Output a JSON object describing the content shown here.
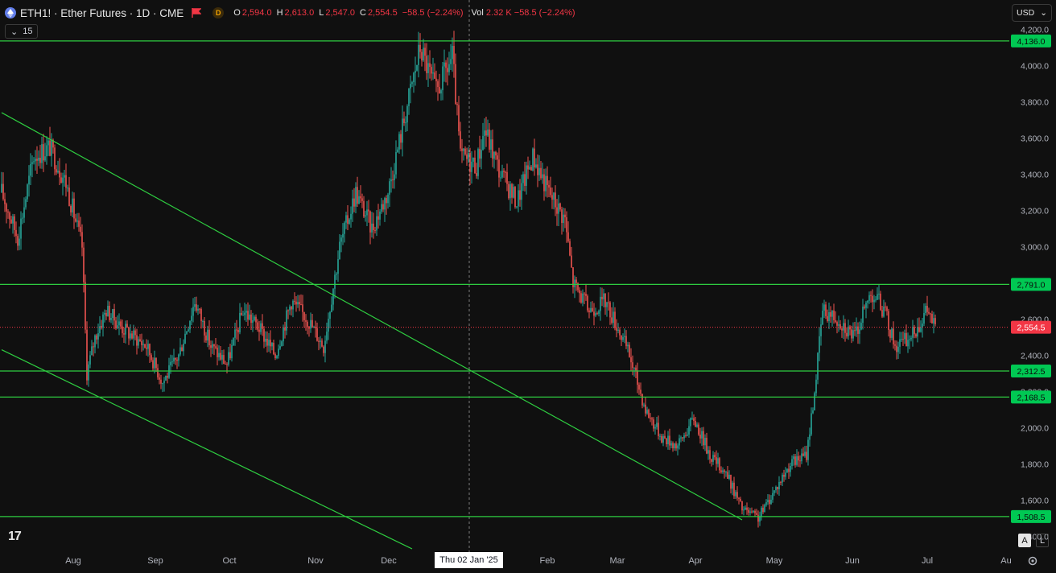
{
  "header": {
    "symbol_text": "ETH1! · Ether Futures · 1D · CME",
    "d_badge": "D",
    "ohlc": [
      {
        "k": "O",
        "v": "2,594.0"
      },
      {
        "k": "H",
        "v": "2,613.0"
      },
      {
        "k": "L",
        "v": "2,547.0"
      },
      {
        "k": "C",
        "v": "2,554.5"
      },
      {
        "k": "",
        "v": "−58.5 (−2.24%)"
      }
    ],
    "vol_label": "Vol",
    "vol_value": "2.32 K  −58.5 (−2.24%)",
    "indicator_count": "15",
    "currency": "USD"
  },
  "crosshair_label": "Thu 02 Jan '25",
  "buttons": {
    "auto": "A",
    "log": "L"
  },
  "colors": {
    "up": "#26a69a",
    "down": "#ef5350",
    "line": "#2ecc40",
    "badge_green": "#00c853",
    "badge_red": "#f23645"
  },
  "chart_data": {
    "type": "candlestick",
    "symbol": "ETH1!",
    "y_ticks": [
      "4,200.0",
      "4,000.0",
      "3,800.0",
      "3,600.0",
      "3,400.0",
      "3,200.0",
      "3,000.0",
      "2,800.0",
      "2,600.0",
      "2,400.0",
      "2,200.0",
      "2,000.0",
      "1,800.0",
      "1,600.0",
      "1,400.0"
    ],
    "x_ticks": [
      "Aug",
      "Sep",
      "Oct",
      "Nov",
      "Dec",
      "Jan",
      "Feb",
      "Mar",
      "Apr",
      "May",
      "Jun",
      "Jul",
      "Au"
    ],
    "ylim": [
      1330,
      4220
    ],
    "horizontal_levels": [
      {
        "value": 4136.0,
        "label": "4,136.0"
      },
      {
        "value": 2791.0,
        "label": "2,791.0"
      },
      {
        "value": 2312.5,
        "label": "2,312.5"
      },
      {
        "value": 2168.5,
        "label": "2,168.5"
      },
      {
        "value": 1508.5,
        "label": "1,508.5"
      }
    ],
    "last_price": {
      "value": 2554.5,
      "label": "2,554.5"
    },
    "anchors": [
      [
        0,
        3300
      ],
      [
        10,
        3050
      ],
      [
        20,
        3500
      ],
      [
        30,
        3550
      ],
      [
        40,
        3350
      ],
      [
        50,
        3000
      ],
      [
        53,
        2300
      ],
      [
        58,
        2500
      ],
      [
        65,
        2650
      ],
      [
        75,
        2550
      ],
      [
        90,
        2450
      ],
      [
        100,
        2250
      ],
      [
        110,
        2400
      ],
      [
        120,
        2700
      ],
      [
        130,
        2450
      ],
      [
        140,
        2350
      ],
      [
        150,
        2650
      ],
      [
        160,
        2550
      ],
      [
        170,
        2400
      ],
      [
        180,
        2700
      ],
      [
        190,
        2600
      ],
      [
        200,
        2450
      ],
      [
        210,
        3000
      ],
      [
        220,
        3300
      ],
      [
        230,
        3100
      ],
      [
        240,
        3300
      ],
      [
        250,
        3700
      ],
      [
        260,
        4100
      ],
      [
        270,
        3850
      ],
      [
        280,
        4050
      ],
      [
        285,
        3500
      ],
      [
        295,
        3450
      ],
      [
        300,
        3650
      ],
      [
        310,
        3400
      ],
      [
        320,
        3250
      ],
      [
        330,
        3500
      ],
      [
        340,
        3300
      ],
      [
        350,
        3150
      ],
      [
        355,
        2800
      ],
      [
        365,
        2650
      ],
      [
        375,
        2700
      ],
      [
        383,
        2550
      ],
      [
        390,
        2400
      ],
      [
        400,
        2100
      ],
      [
        410,
        1950
      ],
      [
        420,
        1900
      ],
      [
        430,
        2050
      ],
      [
        440,
        1850
      ],
      [
        450,
        1750
      ],
      [
        460,
        1550
      ],
      [
        470,
        1500
      ],
      [
        480,
        1650
      ],
      [
        490,
        1800
      ],
      [
        500,
        1850
      ],
      [
        505,
        2200
      ],
      [
        510,
        2650
      ],
      [
        520,
        2600
      ],
      [
        530,
        2500
      ],
      [
        540,
        2750
      ],
      [
        545,
        2700
      ],
      [
        550,
        2600
      ],
      [
        555,
        2450
      ],
      [
        565,
        2500
      ],
      [
        575,
        2650
      ],
      [
        580,
        2555
      ]
    ],
    "trendlines": [
      {
        "from": [
          0,
          3740
        ],
        "to": [
          460,
          1490
        ]
      },
      {
        "from": [
          0,
          2430
        ],
        "to": [
          255,
          1330
        ]
      }
    ]
  }
}
